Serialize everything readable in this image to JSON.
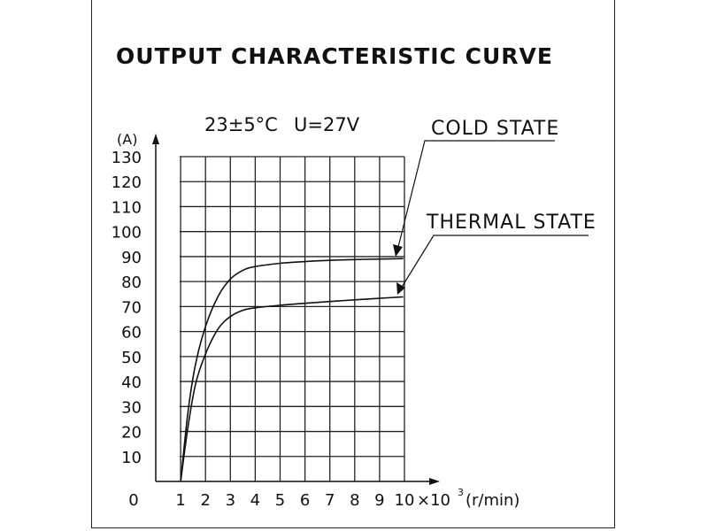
{
  "chart_data": {
    "type": "line",
    "title": "OUTPUT CHARACTERISTIC CURVE",
    "conditions": [
      "23±5°C",
      "U=27V"
    ],
    "ylabel": "(A)",
    "xlabel": "×10 3 (r/min)",
    "xlabel_base": "×10",
    "xlabel_exp": "3",
    "xlabel_unit": "(r/min)",
    "xlim": [
      0,
      10
    ],
    "ylim": [
      0,
      130
    ],
    "x_ticks": [
      "0",
      "1",
      "2",
      "3",
      "4",
      "5",
      "6",
      "7",
      "8",
      "9",
      "10"
    ],
    "y_ticks": [
      "10",
      "20",
      "30",
      "40",
      "50",
      "60",
      "70",
      "80",
      "90",
      "100",
      "110",
      "120",
      "130"
    ],
    "grid": true,
    "series": [
      {
        "name": "COLD STATE",
        "x": [
          1.0,
          1.3,
          1.6,
          2.0,
          2.5,
          3.0,
          3.5,
          4.0,
          5.0,
          6.0,
          7.0,
          8.0,
          9.0,
          9.95
        ],
        "y": [
          0,
          28,
          47,
          62,
          74,
          81,
          84.5,
          86,
          87.3,
          88,
          88.5,
          88.8,
          89,
          89.2
        ]
      },
      {
        "name": "THERMAL STATE",
        "x": [
          1.0,
          1.3,
          1.6,
          2.0,
          2.5,
          3.0,
          3.5,
          4.0,
          5.0,
          6.0,
          7.0,
          8.0,
          9.0,
          9.95
        ],
        "y": [
          0,
          22,
          39,
          51,
          61,
          66,
          68.5,
          69.5,
          70.5,
          71.3,
          72,
          72.7,
          73.3,
          73.9
        ]
      }
    ]
  }
}
